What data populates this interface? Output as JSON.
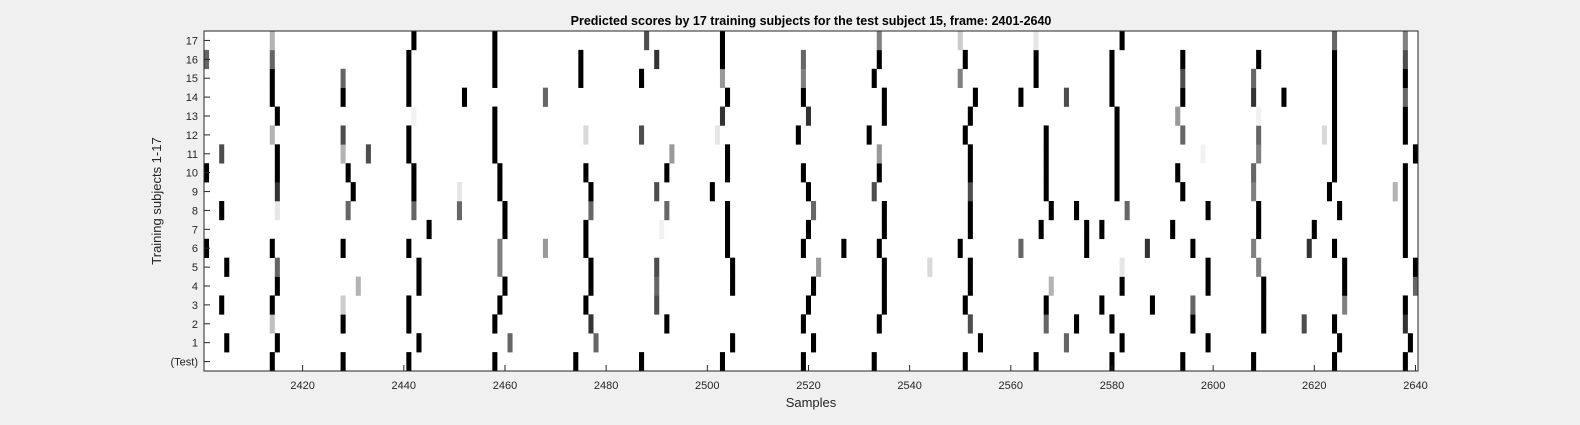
{
  "chart_data": {
    "type": "heatmap",
    "title": "Predicted scores by 17 training subjects for the test subject 15, frame: 2401-2640",
    "xlabel": "Samples",
    "ylabel": "Training subjects 1-17",
    "xlim": [
      2401,
      2640
    ],
    "x_ticks": [
      2420,
      2440,
      2460,
      2480,
      2500,
      2520,
      2540,
      2560,
      2580,
      2600,
      2620,
      2640
    ],
    "y_tick_labels": [
      "(Test)",
      "1",
      "2",
      "3",
      "4",
      "5",
      "6",
      "7",
      "8",
      "9",
      "10",
      "11",
      "12",
      "13",
      "14",
      "15",
      "16",
      "17"
    ],
    "colormap": "gray (white = 0, black = 1)",
    "grid": false,
    "rows": [
      {
        "label": "(Test)",
        "marks": [
          [
            2414,
            1
          ],
          [
            2428,
            1
          ],
          [
            2441,
            1
          ],
          [
            2458,
            1
          ],
          [
            2474,
            1
          ],
          [
            2487,
            1
          ],
          [
            2503,
            1
          ],
          [
            2519,
            1
          ],
          [
            2533,
            1
          ],
          [
            2551,
            1
          ],
          [
            2565,
            1
          ],
          [
            2580,
            1
          ],
          [
            2594,
            1
          ],
          [
            2608,
            1
          ],
          [
            2624,
            1
          ],
          [
            2638,
            1
          ]
        ]
      },
      {
        "label": "1",
        "marks": [
          [
            2405,
            1
          ],
          [
            2415,
            1
          ],
          [
            2443,
            1
          ],
          [
            2461,
            0.6
          ],
          [
            2478,
            0.6
          ],
          [
            2505,
            1
          ],
          [
            2521,
            1
          ],
          [
            2554,
            1
          ],
          [
            2571,
            0.6
          ],
          [
            2582,
            1
          ],
          [
            2599,
            1
          ],
          [
            2625,
            1
          ],
          [
            2639,
            1
          ]
        ]
      },
      {
        "label": "2",
        "marks": [
          [
            2414,
            0.25
          ],
          [
            2428,
            1
          ],
          [
            2441,
            1
          ],
          [
            2458,
            1
          ],
          [
            2477,
            0.8
          ],
          [
            2492,
            1
          ],
          [
            2519,
            1
          ],
          [
            2534,
            1
          ],
          [
            2552,
            0.7
          ],
          [
            2567,
            0.6
          ],
          [
            2573,
            1
          ],
          [
            2580,
            1
          ],
          [
            2596,
            1
          ],
          [
            2610,
            1
          ],
          [
            2618,
            0.7
          ],
          [
            2624,
            1
          ],
          [
            2638,
            0.8
          ]
        ]
      },
      {
        "label": "3",
        "marks": [
          [
            2404,
            1
          ],
          [
            2414,
            1
          ],
          [
            2428,
            0.2
          ],
          [
            2441,
            1
          ],
          [
            2459,
            1
          ],
          [
            2476,
            1
          ],
          [
            2490,
            0.7
          ],
          [
            2520,
            1
          ],
          [
            2535,
            1
          ],
          [
            2551,
            1
          ],
          [
            2567,
            1
          ],
          [
            2578,
            1
          ],
          [
            2588,
            1
          ],
          [
            2596,
            0.6
          ],
          [
            2610,
            1
          ],
          [
            2626,
            0.5
          ],
          [
            2638,
            1
          ]
        ]
      },
      {
        "label": "4",
        "marks": [
          [
            2415,
            1
          ],
          [
            2431,
            0.3
          ],
          [
            2443,
            1
          ],
          [
            2460,
            1
          ],
          [
            2477,
            1
          ],
          [
            2490,
            0.6
          ],
          [
            2505,
            1
          ],
          [
            2521,
            1
          ],
          [
            2535,
            1
          ],
          [
            2552,
            1
          ],
          [
            2568,
            0.3
          ],
          [
            2582,
            1
          ],
          [
            2599,
            1
          ],
          [
            2610,
            1
          ],
          [
            2626,
            1
          ],
          [
            2640,
            0.6
          ]
        ]
      },
      {
        "label": "5",
        "marks": [
          [
            2405,
            1
          ],
          [
            2415,
            0.6
          ],
          [
            2443,
            1
          ],
          [
            2459,
            0.5
          ],
          [
            2477,
            1
          ],
          [
            2490,
            0.7
          ],
          [
            2505,
            1
          ],
          [
            2522,
            0.4
          ],
          [
            2535,
            1
          ],
          [
            2544,
            0.15
          ],
          [
            2552,
            1
          ],
          [
            2582,
            0.1
          ],
          [
            2599,
            1
          ],
          [
            2609,
            0.5
          ],
          [
            2626,
            1
          ],
          [
            2640,
            1
          ]
        ]
      },
      {
        "label": "6",
        "marks": [
          [
            2401,
            1
          ],
          [
            2414,
            1
          ],
          [
            2428,
            1
          ],
          [
            2441,
            1
          ],
          [
            2459,
            0.5
          ],
          [
            2468,
            0.4
          ],
          [
            2476,
            1
          ],
          [
            2504,
            1
          ],
          [
            2519,
            1
          ],
          [
            2527,
            1
          ],
          [
            2534,
            1
          ],
          [
            2550,
            1
          ],
          [
            2562,
            0.6
          ],
          [
            2575,
            1
          ],
          [
            2587,
            0.8
          ],
          [
            2596,
            1
          ],
          [
            2608,
            0.5
          ],
          [
            2619,
            0.8
          ],
          [
            2624,
            1
          ],
          [
            2638,
            1
          ]
        ]
      },
      {
        "label": "7",
        "marks": [
          [
            2445,
            1
          ],
          [
            2460,
            1
          ],
          [
            2476,
            1
          ],
          [
            2491,
            0.05
          ],
          [
            2504,
            1
          ],
          [
            2520,
            1
          ],
          [
            2535,
            1
          ],
          [
            2552,
            1
          ],
          [
            2566,
            1
          ],
          [
            2575,
            1
          ],
          [
            2578,
            1
          ],
          [
            2592,
            1
          ],
          [
            2609,
            1
          ],
          [
            2620,
            1
          ],
          [
            2638,
            1
          ]
        ]
      },
      {
        "label": "8",
        "marks": [
          [
            2404,
            1
          ],
          [
            2415,
            0.1
          ],
          [
            2429,
            0.6
          ],
          [
            2442,
            0.6
          ],
          [
            2451,
            0.6
          ],
          [
            2460,
            1
          ],
          [
            2477,
            0.6
          ],
          [
            2492,
            0.6
          ],
          [
            2504,
            1
          ],
          [
            2521,
            0.6
          ],
          [
            2535,
            1
          ],
          [
            2552,
            1
          ],
          [
            2568,
            1
          ],
          [
            2573,
            1
          ],
          [
            2583,
            0.6
          ],
          [
            2599,
            1
          ],
          [
            2609,
            1
          ],
          [
            2625,
            1
          ],
          [
            2638,
            1
          ]
        ]
      },
      {
        "label": "9",
        "marks": [
          [
            2415,
            0.8
          ],
          [
            2430,
            1
          ],
          [
            2442,
            1
          ],
          [
            2451,
            0.1
          ],
          [
            2459,
            1
          ],
          [
            2477,
            1
          ],
          [
            2490,
            0.7
          ],
          [
            2501,
            1
          ],
          [
            2520,
            1
          ],
          [
            2533,
            0.7
          ],
          [
            2552,
            0.7
          ],
          [
            2567,
            1
          ],
          [
            2581,
            1
          ],
          [
            2594,
            1
          ],
          [
            2608,
            0.5
          ],
          [
            2623,
            1
          ],
          [
            2636,
            0.3
          ],
          [
            2638,
            1
          ]
        ]
      },
      {
        "label": "10",
        "marks": [
          [
            2401,
            1
          ],
          [
            2415,
            1
          ],
          [
            2429,
            1
          ],
          [
            2442,
            1
          ],
          [
            2459,
            1
          ],
          [
            2476,
            1
          ],
          [
            2492,
            1
          ],
          [
            2504,
            1
          ],
          [
            2519,
            1
          ],
          [
            2534,
            1
          ],
          [
            2552,
            1
          ],
          [
            2567,
            1
          ],
          [
            2581,
            1
          ],
          [
            2593,
            1
          ],
          [
            2608,
            0.6
          ],
          [
            2624,
            1
          ],
          [
            2638,
            1
          ]
        ]
      },
      {
        "label": "11",
        "marks": [
          [
            2404,
            0.7
          ],
          [
            2415,
            1
          ],
          [
            2428,
            0.3
          ],
          [
            2433,
            0.7
          ],
          [
            2441,
            1
          ],
          [
            2458,
            1
          ],
          [
            2493,
            0.4
          ],
          [
            2504,
            1
          ],
          [
            2534,
            0.4
          ],
          [
            2552,
            1
          ],
          [
            2567,
            1
          ],
          [
            2581,
            1
          ],
          [
            2598,
            0.05
          ],
          [
            2609,
            0.5
          ],
          [
            2624,
            1
          ],
          [
            2640,
            1
          ]
        ]
      },
      {
        "label": "12",
        "marks": [
          [
            2414,
            0.3
          ],
          [
            2428,
            0.7
          ],
          [
            2441,
            1
          ],
          [
            2458,
            1
          ],
          [
            2476,
            0.15
          ],
          [
            2487,
            0.7
          ],
          [
            2502,
            0.1
          ],
          [
            2518,
            1
          ],
          [
            2532,
            1
          ],
          [
            2551,
            1
          ],
          [
            2567,
            1
          ],
          [
            2581,
            1
          ],
          [
            2594,
            0.6
          ],
          [
            2609,
            0.6
          ],
          [
            2622,
            0.15
          ],
          [
            2624,
            1
          ],
          [
            2638,
            1
          ]
        ]
      },
      {
        "label": "13",
        "marks": [
          [
            2415,
            1
          ],
          [
            2442,
            0.05
          ],
          [
            2458,
            1
          ],
          [
            2503,
            0.8
          ],
          [
            2520,
            0.8
          ],
          [
            2535,
            1
          ],
          [
            2552,
            1
          ],
          [
            2581,
            1
          ],
          [
            2593,
            0.4
          ],
          [
            2609,
            0.05
          ],
          [
            2624,
            1
          ],
          [
            2638,
            1
          ]
        ]
      },
      {
        "label": "14",
        "marks": [
          [
            2414,
            1
          ],
          [
            2428,
            1
          ],
          [
            2441,
            1
          ],
          [
            2452,
            1
          ],
          [
            2468,
            0.6
          ],
          [
            2504,
            1
          ],
          [
            2519,
            1
          ],
          [
            2535,
            1
          ],
          [
            2553,
            1
          ],
          [
            2562,
            1
          ],
          [
            2571,
            0.7
          ],
          [
            2580,
            1
          ],
          [
            2594,
            1
          ],
          [
            2608,
            0.8
          ],
          [
            2614,
            1
          ],
          [
            2624,
            1
          ],
          [
            2638,
            0.6
          ]
        ]
      },
      {
        "label": "15",
        "marks": [
          [
            2414,
            1
          ],
          [
            2428,
            0.6
          ],
          [
            2441,
            1
          ],
          [
            2458,
            1
          ],
          [
            2475,
            1
          ],
          [
            2487,
            1
          ],
          [
            2503,
            0.4
          ],
          [
            2519,
            0.5
          ],
          [
            2533,
            1
          ],
          [
            2550,
            0.5
          ],
          [
            2565,
            1
          ],
          [
            2580,
            1
          ],
          [
            2594,
            0.7
          ],
          [
            2608,
            0.6
          ],
          [
            2624,
            1
          ],
          [
            2638,
            1
          ]
        ]
      },
      {
        "label": "16",
        "marks": [
          [
            2401,
            0.6
          ],
          [
            2414,
            0.6
          ],
          [
            2441,
            1
          ],
          [
            2458,
            1
          ],
          [
            2475,
            1
          ],
          [
            2490,
            0.8
          ],
          [
            2503,
            1
          ],
          [
            2519,
            0.6
          ],
          [
            2534,
            1
          ],
          [
            2551,
            1
          ],
          [
            2565,
            1
          ],
          [
            2580,
            1
          ],
          [
            2594,
            1
          ],
          [
            2609,
            1
          ],
          [
            2624,
            1
          ],
          [
            2638,
            0.7
          ]
        ]
      },
      {
        "label": "17",
        "marks": [
          [
            2414,
            0.3
          ],
          [
            2442,
            1
          ],
          [
            2458,
            1
          ],
          [
            2488,
            0.7
          ],
          [
            2503,
            1
          ],
          [
            2534,
            0.5
          ],
          [
            2550,
            0.2
          ],
          [
            2565,
            0.1
          ],
          [
            2582,
            1
          ],
          [
            2624,
            0.6
          ],
          [
            2638,
            0.5
          ]
        ]
      }
    ]
  }
}
